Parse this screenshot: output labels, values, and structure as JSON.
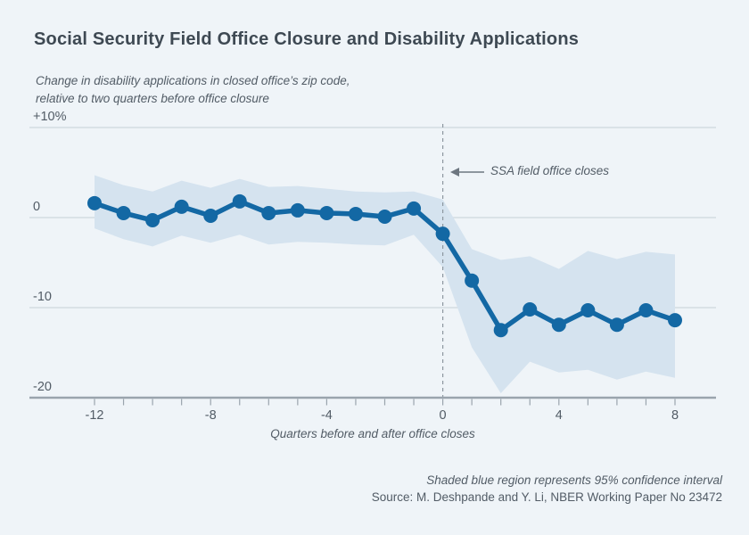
{
  "chart_data": {
    "type": "line",
    "title": "Social Security Field Office Closure and Disability Applications",
    "subtitle_line1": "Change in disability applications in closed office’s zip code,",
    "subtitle_line2": "relative to two quarters before office closure",
    "xlabel": "Quarters before and after office closes",
    "annotation": "SSA field office closes",
    "footnote": "Shaded blue region represents 95% confidence interval",
    "source": "Source: M. Deshpande and Y. Li, NBER Working Paper No 23472",
    "x": [
      -12,
      -11,
      -10,
      -9,
      -8,
      -7,
      -6,
      -5,
      -4,
      -3,
      -2,
      -1,
      0,
      1,
      2,
      3,
      4,
      5,
      6,
      7,
      8
    ],
    "series": [
      {
        "name": "Change in disability applications (%)",
        "values": [
          1.6,
          0.5,
          -0.3,
          1.2,
          0.2,
          1.8,
          0.5,
          0.8,
          0.5,
          0.4,
          0.1,
          1.0,
          -1.8,
          -7.0,
          -12.5,
          -10.2,
          -11.9,
          -10.3,
          -11.9,
          -10.3,
          -11.4
        ]
      }
    ],
    "band": {
      "label": "95% confidence interval",
      "upper": [
        4.7,
        3.6,
        2.9,
        4.1,
        3.3,
        4.3,
        3.4,
        3.5,
        3.2,
        2.9,
        2.8,
        2.9,
        2.0,
        -3.5,
        -4.7,
        -4.3,
        -5.7,
        -3.7,
        -4.6,
        -3.8,
        -4.1
      ],
      "lower": [
        -1.2,
        -2.4,
        -3.2,
        -2.0,
        -2.8,
        -1.9,
        -3.0,
        -2.7,
        -2.8,
        -3.0,
        -3.1,
        -1.9,
        -5.5,
        -14.4,
        -19.5,
        -16.0,
        -17.2,
        -16.9,
        -18.0,
        -17.1,
        -17.8
      ]
    },
    "y_axis": {
      "min": -20,
      "max": 10,
      "ticks": [
        {
          "value": 10,
          "label": "+10%"
        },
        {
          "value": 0,
          "label": "0"
        },
        {
          "value": -10,
          "label": "-10"
        },
        {
          "value": -20,
          "label": "-20"
        }
      ]
    },
    "x_axis": {
      "min": -12,
      "max": 8,
      "closure_marker_x": 0,
      "labeled_ticks": [
        {
          "value": -12,
          "label": "-12"
        },
        {
          "value": -8,
          "label": "-8"
        },
        {
          "value": -4,
          "label": "-4"
        },
        {
          "value": 0,
          "label": "0"
        },
        {
          "value": 4,
          "label": "4"
        },
        {
          "value": 8,
          "label": "8"
        }
      ]
    },
    "grid": true,
    "legend_position": "none",
    "colors": {
      "background": "#eff4f8",
      "band": "#d5e3ef",
      "line": "#1368a4",
      "grid": "#c6cfd6",
      "axis": "#9aa4ad",
      "dashed": "#8d97a0",
      "arrow": "#6d7680",
      "title_text": "#3e4953",
      "muted_text": "#525c66"
    }
  }
}
